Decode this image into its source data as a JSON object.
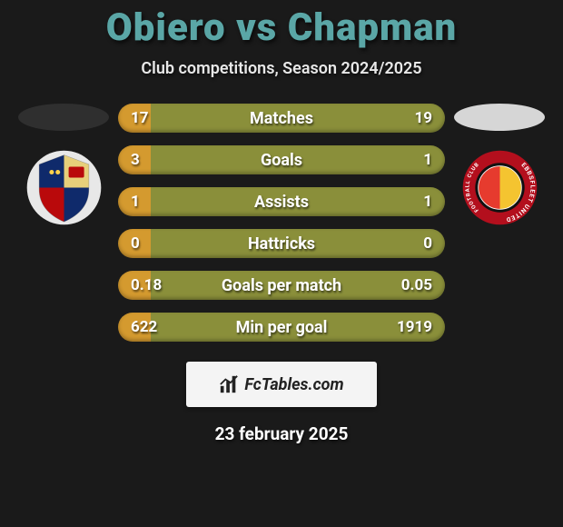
{
  "title_color": "#5aa6a6",
  "background_color": "#1a1a1a",
  "header": {
    "player_left": "Obiero",
    "vs": "vs",
    "player_right": "Chapman",
    "subtitle": "Club competitions, Season 2024/2025"
  },
  "players": {
    "left": {
      "ellipse_color": "#2f2f2f",
      "crest": {
        "type": "shield",
        "bg": "#ffffff",
        "panels": [
          "#0f2a6b",
          "#e7cf7a",
          "#b9090b",
          "#0f2a6b"
        ],
        "border": "#c8c8c8"
      }
    },
    "right": {
      "ellipse_color": "#d6d6d6",
      "crest": {
        "type": "ring",
        "ring_color": "#b30f1d",
        "ring_text_color": "#ffffff",
        "inner_bg": "#111111",
        "ball_colors": [
          "#e63b2e",
          "#f4c430"
        ]
      }
    }
  },
  "stats": {
    "bar_color_base": "#8a8f3a",
    "bar_color_accent": "#d49a2f",
    "rows": [
      {
        "label": "Matches",
        "left": "17",
        "right": "19"
      },
      {
        "label": "Goals",
        "left": "3",
        "right": "1"
      },
      {
        "label": "Assists",
        "left": "1",
        "right": "1"
      },
      {
        "label": "Hattricks",
        "left": "0",
        "right": "0"
      },
      {
        "label": "Goals per match",
        "left": "0.18",
        "right": "0.05"
      },
      {
        "label": "Min per goal",
        "left": "622",
        "right": "1919"
      }
    ]
  },
  "branding": {
    "text": "FcTables.com",
    "bg": "#f4f4f4",
    "icon_color": "#222222"
  },
  "date": "23 february 2025"
}
